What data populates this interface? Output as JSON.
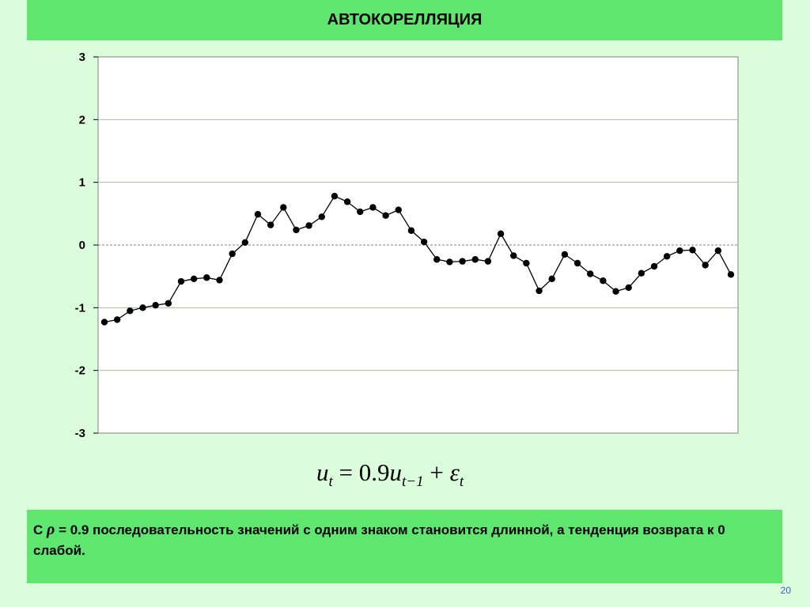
{
  "slide": {
    "title": "АВТОКОРЕЛЛЯЦИЯ",
    "page_number": "20",
    "note_prefix": "С",
    "note_symbol": "ρ",
    "note_text": "= 0.9 последовательность значений с одним знаком становится длинной, а тенденция возврата к 0 слабой."
  },
  "formula": {
    "lhs_var": "u",
    "lhs_sub": "t",
    "equals": "=",
    "coef": "0.9",
    "rhs_var": "u",
    "rhs_sub": "t−1",
    "plus": "+",
    "eps": "ε",
    "eps_sub": "t"
  },
  "colors": {
    "title_bar": "#5fe66f",
    "note_box": "#5fe66f",
    "background": "#dcfddc",
    "plot_area": "#ffffff",
    "series": "#000000",
    "gridline": "#a8b8a8",
    "page_number": "#3b5bd6"
  },
  "chart_data": {
    "type": "line",
    "title": "",
    "xlabel": "",
    "ylabel": "",
    "ylim": [
      -3,
      3
    ],
    "yticks": [
      3,
      2,
      1,
      0,
      -1,
      -2,
      -3
    ],
    "grid": true,
    "legend": "none",
    "series": [
      {
        "values": [
          -1.23,
          -1.19,
          -1.05,
          -1.0,
          -0.96,
          -0.93,
          -0.58,
          -0.54,
          -0.52,
          -0.56,
          -0.14,
          0.04,
          0.49,
          0.32,
          0.6,
          0.24,
          0.31,
          0.45,
          0.78,
          0.69,
          0.53,
          0.6,
          0.47,
          0.56,
          0.23,
          0.05,
          -0.23,
          -0.27,
          -0.26,
          -0.23,
          -0.26,
          0.18,
          -0.17,
          -0.29,
          -0.73,
          -0.54,
          -0.15,
          -0.29,
          -0.46,
          -0.57,
          -0.74,
          -0.68,
          -0.45,
          -0.34,
          -0.18,
          -0.09,
          -0.08,
          -0.32,
          -0.09,
          -0.47
        ]
      }
    ]
  }
}
